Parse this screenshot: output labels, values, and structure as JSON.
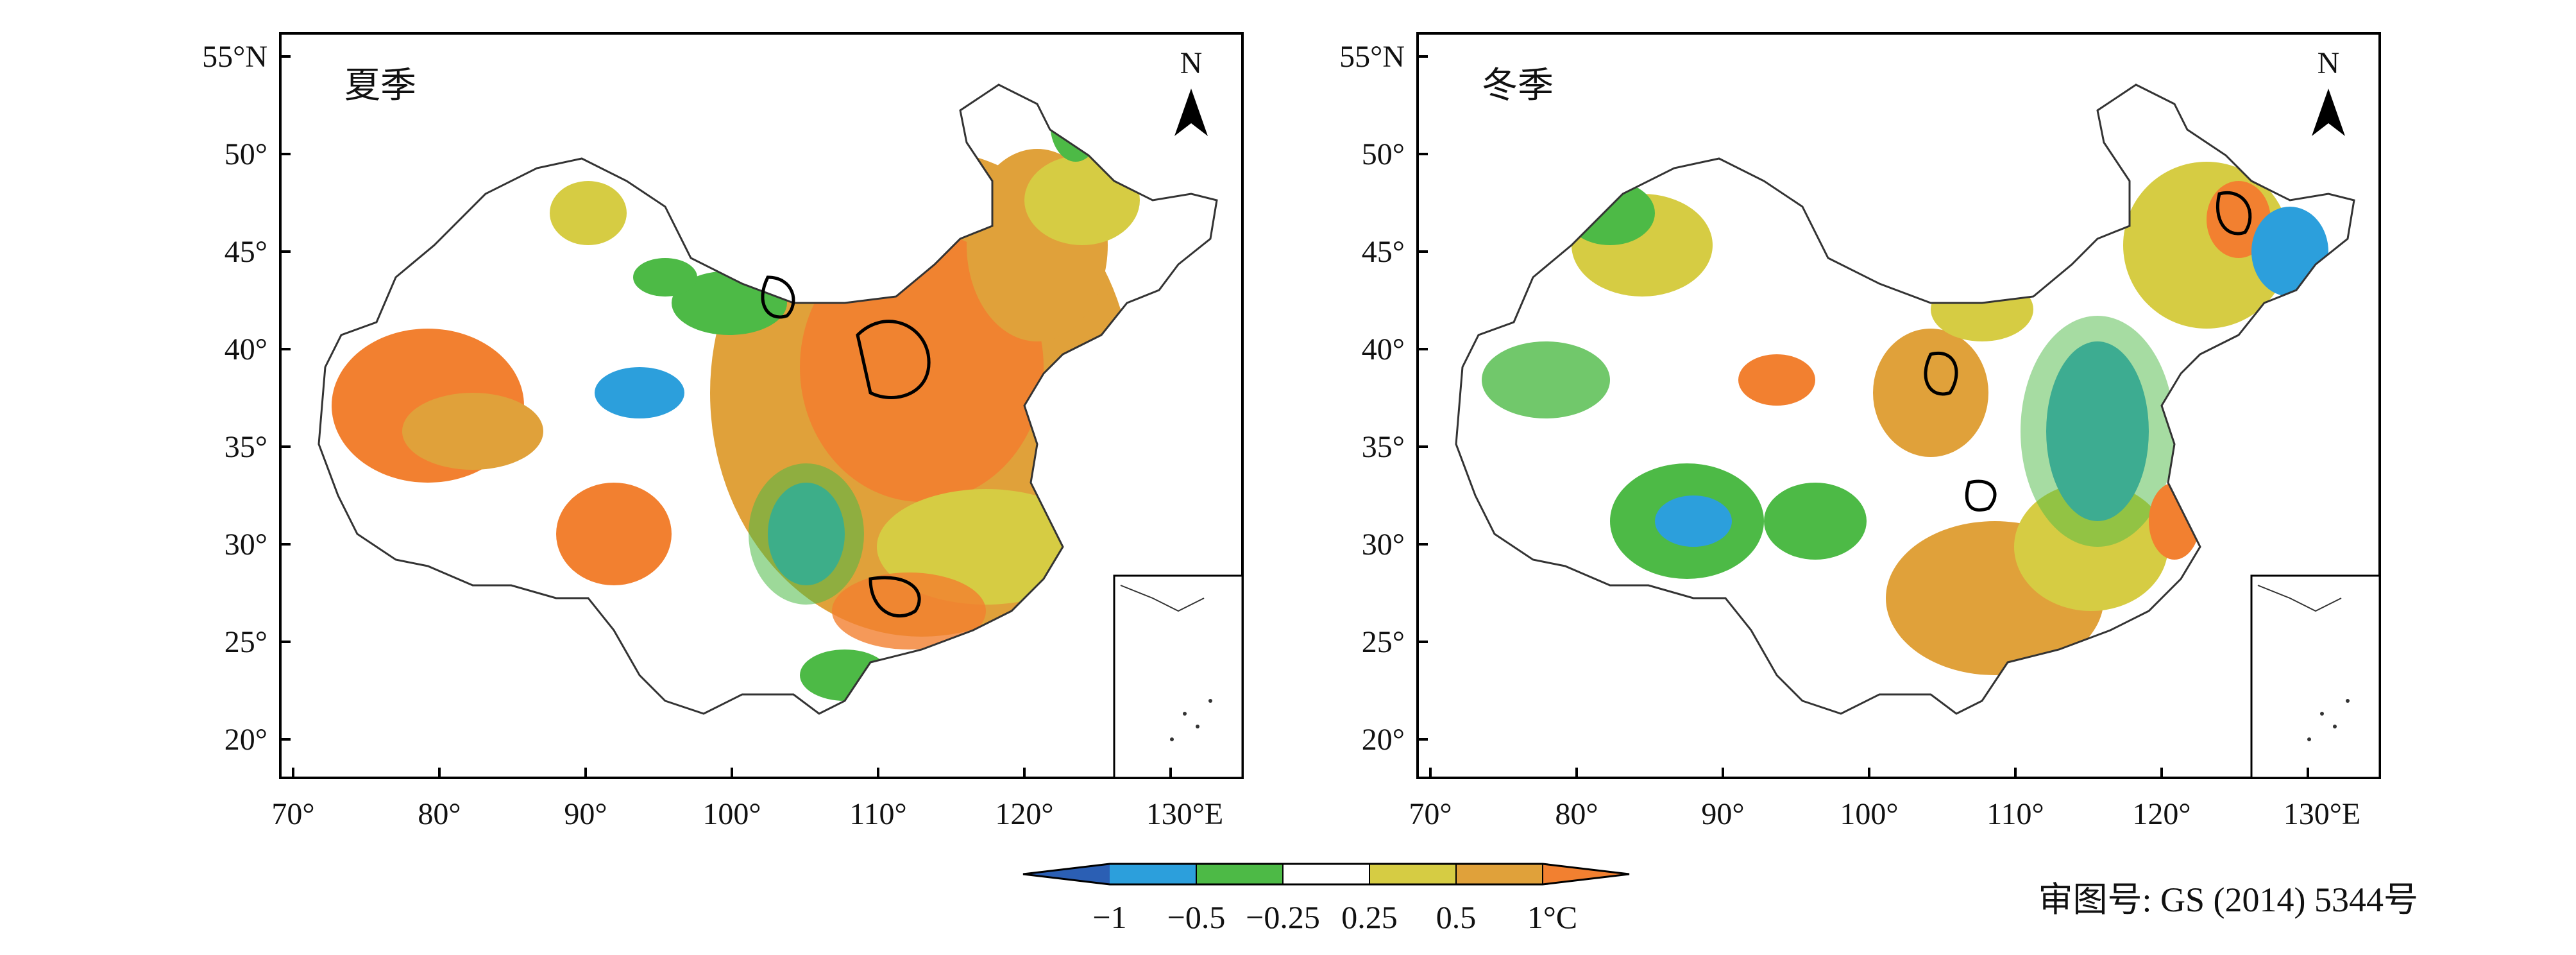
{
  "panels": [
    {
      "title": "夏季",
      "north_label": "N",
      "lat_labels": [
        "55°N",
        "50°",
        "45°",
        "40°",
        "35°",
        "30°",
        "25°",
        "20°"
      ],
      "lon_labels": [
        "70°",
        "80°",
        "90°",
        "100°",
        "110°",
        "120°",
        "130°E"
      ]
    },
    {
      "title": "冬季",
      "north_label": "N",
      "lat_labels": [
        "55°N",
        "50°",
        "45°",
        "40°",
        "35°",
        "30°",
        "25°",
        "20°"
      ],
      "lon_labels": [
        "70°",
        "80°",
        "90°",
        "100°",
        "110°",
        "120°",
        "130°E"
      ]
    }
  ],
  "colorbar": {
    "labels": [
      "−1",
      "−0.5",
      "−0.25",
      "0.25",
      "0.5",
      "1°C"
    ],
    "colors": [
      "#2b5fb4",
      "#2c9fdc",
      "#4dba46",
      "#ffffff",
      "#d6cc43",
      "#e0a13a",
      "#f28030"
    ]
  },
  "approval_number": "审图号: GS (2014) 5344号"
}
